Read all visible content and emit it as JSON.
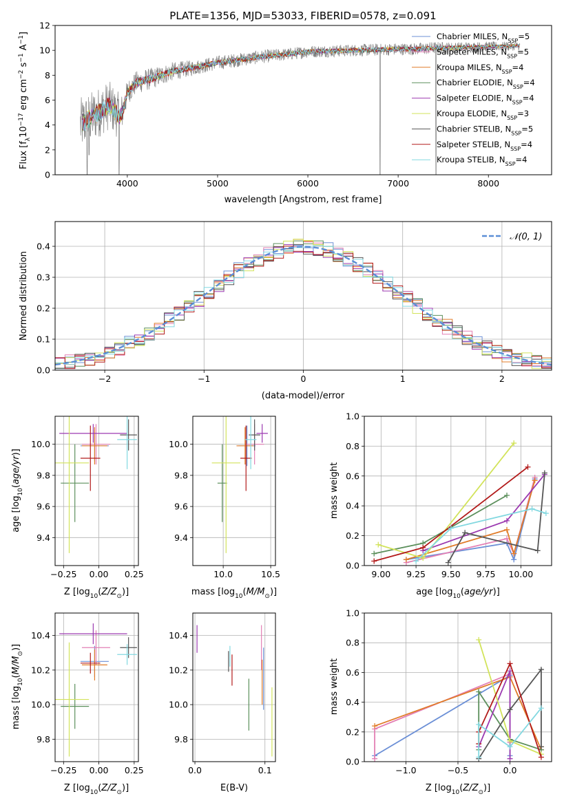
{
  "figure_title": "PLATE=1356, MJD=53033, FIBERID=0578, z=0.091",
  "colors": {
    "Chabrier MILES": "#6b8fd6",
    "Salpeter MILES": "#e37fb4",
    "Kroupa MILES": "#e07b28",
    "Chabrier ELODIE": "#5b8f5b",
    "Salpeter ELODIE": "#9b39b0",
    "Kroupa ELODIE": "#d2e35a",
    "Chabrier STELIB": "#555555",
    "Salpeter STELIB": "#b21a1a",
    "Kroupa STELIB": "#82d8e0",
    "normal_curve": "#5b8ed6",
    "data": "#808080"
  },
  "chart_data": [
    {
      "id": "spectrum",
      "type": "line",
      "title": "PLATE=1356, MJD=53033, FIBERID=0578, z=0.091",
      "xlabel": "wavelength [Angstrom, rest frame]",
      "ylabel": "Flux [fλ10⁻¹⁷ erg cm⁻² s⁻¹ A⁻¹]",
      "xlim": [
        3200,
        8700
      ],
      "ylim": [
        0,
        12
      ],
      "xticks": [
        4000,
        5000,
        6000,
        7000,
        8000
      ],
      "yticks": [
        0,
        2,
        4,
        6,
        8,
        10,
        12
      ],
      "grid": false,
      "legend_position": "top-right",
      "legend": [
        {
          "label": "Chabrier MILES, N",
          "sub": "SSP",
          "tail": "=5",
          "color_key": "Chabrier MILES"
        },
        {
          "label": "Salpeter MILES, N",
          "sub": "SSP",
          "tail": "=5",
          "color_key": "Salpeter MILES"
        },
        {
          "label": "Kroupa MILES, N",
          "sub": "SSP",
          "tail": "=4",
          "color_key": "Kroupa MILES"
        },
        {
          "label": "Chabrier ELODIE, N",
          "sub": "SSP",
          "tail": "=4",
          "color_key": "Chabrier ELODIE"
        },
        {
          "label": "Salpeter ELODIE, N",
          "sub": "SSP",
          "tail": "=4",
          "color_key": "Salpeter ELODIE"
        },
        {
          "label": "Kroupa ELODIE, N",
          "sub": "SSP",
          "tail": "=3",
          "color_key": "Kroupa ELODIE"
        },
        {
          "label": "Chabrier STELIB, N",
          "sub": "SSP",
          "tail": "=5",
          "color_key": "Chabrier STELIB"
        },
        {
          "label": "Salpeter STELIB, N",
          "sub": "SSP",
          "tail": "=4",
          "color_key": "Salpeter STELIB"
        },
        {
          "label": "Kroupa STELIB, N",
          "sub": "SSP",
          "tail": "=4",
          "color_key": "Kroupa STELIB"
        }
      ],
      "data_range": [
        3480,
        8350
      ],
      "continuum_anchors": [
        [
          3480,
          4.0
        ],
        [
          3600,
          4.6
        ],
        [
          3800,
          5.6
        ],
        [
          3920,
          4.6
        ],
        [
          3960,
          5.4
        ],
        [
          4000,
          6.6
        ],
        [
          4100,
          7.4
        ],
        [
          4300,
          7.8
        ],
        [
          4500,
          8.3
        ],
        [
          4800,
          8.7
        ],
        [
          5000,
          9.0
        ],
        [
          5200,
          9.2
        ],
        [
          5500,
          9.5
        ],
        [
          5800,
          9.7
        ],
        [
          6000,
          9.9
        ],
        [
          6300,
          9.95
        ],
        [
          6500,
          10.0
        ],
        [
          6800,
          10.05
        ],
        [
          7000,
          10.1
        ],
        [
          7200,
          10.1
        ],
        [
          7400,
          10.2
        ],
        [
          7600,
          10.2
        ],
        [
          7800,
          10.25
        ],
        [
          8000,
          10.3
        ],
        [
          8350,
          10.35
        ]
      ],
      "noise_anchors": [
        [
          3480,
          2.2
        ],
        [
          3900,
          1.9
        ],
        [
          4000,
          1.0
        ],
        [
          4800,
          0.6
        ],
        [
          6000,
          0.5
        ],
        [
          7400,
          0.5
        ],
        [
          8350,
          0.35
        ]
      ],
      "spikes": [
        [
          3555,
          0.0
        ],
        [
          3575,
          1.6
        ],
        [
          3910,
          0.0
        ],
        [
          6800,
          0.0
        ],
        [
          7420,
          0.0
        ]
      ]
    },
    {
      "id": "residual_hist",
      "type": "step",
      "xlabel": "(data-model)/error",
      "ylabel": "Normed distribution",
      "xlim": [
        -2.5,
        2.5
      ],
      "ylim": [
        0,
        0.48
      ],
      "xticks": [
        -2,
        -1,
        0,
        1,
        2
      ],
      "yticks": [
        0.0,
        0.1,
        0.2,
        0.3,
        0.4
      ],
      "grid": true,
      "legend_position": "top-right",
      "legend": [
        {
          "label": "𝒩(0, 1)",
          "color_key": "normal_curve",
          "style": "dashed"
        }
      ],
      "bin_width": 0.1
    },
    {
      "id": "age_vs_Z",
      "type": "errorbar",
      "xlabel": "Z [log10(Z/Z⊙)]",
      "ylabel": "age  [log10(age/yr)]",
      "xlim": [
        -0.31,
        0.28
      ],
      "ylim": [
        9.22,
        10.18
      ],
      "xticks": [
        -0.25,
        0.0,
        0.25
      ],
      "yticks": [
        9.4,
        9.6,
        9.8,
        10.0
      ],
      "grid": true,
      "points": [
        {
          "key": "Chabrier MILES",
          "x": -0.03,
          "xerr": 0.1,
          "y": 9.99,
          "yerr": 0.1
        },
        {
          "key": "Salpeter MILES",
          "x": -0.02,
          "xerr": 0.1,
          "y": 10.0,
          "yerr": 0.13
        },
        {
          "key": "Kroupa MILES",
          "x": -0.03,
          "xerr": 0.09,
          "y": 9.99,
          "yerr": 0.12
        },
        {
          "key": "Chabrier ELODIE",
          "x": -0.17,
          "xerr": 0.1,
          "y": 9.75,
          "yerr": 0.25
        },
        {
          "key": "Salpeter ELODIE",
          "x": -0.04,
          "xerr": 0.24,
          "y": 10.07,
          "yerr": 0.06
        },
        {
          "key": "Kroupa ELODIE",
          "x": -0.21,
          "xerr": 0.14,
          "y": 9.88,
          "yerr": 0.58
        },
        {
          "key": "Chabrier STELIB",
          "x": 0.21,
          "xerr": 0.06,
          "y": 10.06,
          "yerr": 0.1
        },
        {
          "key": "Salpeter STELIB",
          "x": -0.06,
          "xerr": 0.07,
          "y": 9.91,
          "yerr": 0.21
        },
        {
          "key": "Kroupa STELIB",
          "x": 0.2,
          "xerr": 0.07,
          "y": 10.03,
          "yerr": 0.19
        }
      ]
    },
    {
      "id": "age_vs_mass",
      "type": "errorbar",
      "xlabel": "mass [log10(M/M⊙)]",
      "ylabel": "",
      "xlim": [
        9.68,
        10.55
      ],
      "ylim": [
        9.22,
        10.18
      ],
      "xticks": [
        10.0,
        10.5
      ],
      "yticks": [
        9.4,
        9.6,
        9.8,
        10.0
      ],
      "grid": true,
      "points": [
        {
          "key": "Chabrier MILES",
          "x": 10.25,
          "xerr": 0.09,
          "y": 9.99,
          "yerr": 0.13
        },
        {
          "key": "Salpeter MILES",
          "x": 10.33,
          "xerr": 0.1,
          "y": 10.0,
          "yerr": 0.13
        },
        {
          "key": "Kroupa MILES",
          "x": 10.23,
          "xerr": 0.09,
          "y": 9.99,
          "yerr": 0.12
        },
        {
          "key": "Chabrier ELODIE",
          "x": 9.99,
          "xerr": 0.05,
          "y": 9.75,
          "yerr": 0.25
        },
        {
          "key": "Salpeter ELODIE",
          "x": 10.41,
          "xerr": 0.06,
          "y": 10.07,
          "yerr": 0.06
        },
        {
          "key": "Kroupa ELODIE",
          "x": 10.03,
          "xerr": 0.15,
          "y": 9.88,
          "yerr": 0.58
        },
        {
          "key": "Chabrier STELIB",
          "x": 10.33,
          "xerr": 0.06,
          "y": 10.06,
          "yerr": 0.1
        },
        {
          "key": "Salpeter STELIB",
          "x": 10.24,
          "xerr": 0.06,
          "y": 9.91,
          "yerr": 0.21
        },
        {
          "key": "Kroupa STELIB",
          "x": 10.29,
          "xerr": 0.06,
          "y": 10.03,
          "yerr": 0.19
        }
      ]
    },
    {
      "id": "mass_weight_vs_age",
      "type": "line",
      "xlabel": "age  [log10(age/yr)]",
      "ylabel": "mass weight",
      "xlim": [
        8.88,
        10.22
      ],
      "ylim": [
        0,
        1.0
      ],
      "xticks": [
        9.0,
        9.25,
        9.5,
        9.75,
        10.0
      ],
      "yticks": [
        0.0,
        0.2,
        0.4,
        0.6,
        0.8,
        1.0
      ],
      "grid": true,
      "series": [
        {
          "key": "Chabrier MILES",
          "x": [
            9.18,
            9.9,
            9.95,
            10.1
          ],
          "y": [
            0.04,
            0.15,
            0.04,
            0.58
          ]
        },
        {
          "key": "Salpeter MILES",
          "x": [
            9.18,
            9.9,
            9.95,
            10.1
          ],
          "y": [
            0.02,
            0.18,
            0.08,
            0.59
          ]
        },
        {
          "key": "Kroupa MILES",
          "x": [
            9.18,
            9.9,
            9.95,
            10.1
          ],
          "y": [
            0.04,
            0.24,
            0.08,
            0.57
          ]
        },
        {
          "key": "Chabrier ELODIE",
          "x": [
            8.95,
            9.3,
            9.9
          ],
          "y": [
            0.08,
            0.15,
            0.47
          ]
        },
        {
          "key": "Salpeter ELODIE",
          "x": [
            9.3,
            9.9,
            10.17
          ],
          "y": [
            0.1,
            0.3,
            0.61
          ]
        },
        {
          "key": "Kroupa ELODIE",
          "x": [
            8.98,
            9.3,
            9.95
          ],
          "y": [
            0.14,
            0.05,
            0.82
          ]
        },
        {
          "key": "Chabrier STELIB",
          "x": [
            9.48,
            9.6,
            10.12,
            10.17
          ],
          "y": [
            0.02,
            0.22,
            0.1,
            0.62
          ]
        },
        {
          "key": "Salpeter STELIB",
          "x": [
            8.95,
            9.3,
            10.05
          ],
          "y": [
            0.03,
            0.12,
            0.66
          ]
        },
        {
          "key": "Kroupa STELIB",
          "x": [
            9.25,
            9.5,
            10.08,
            10.18
          ],
          "y": [
            0.03,
            0.25,
            0.38,
            0.35
          ]
        }
      ]
    },
    {
      "id": "mass_vs_Z",
      "type": "errorbar",
      "xlabel": "Z [log10(Z/Z⊙)]",
      "ylabel": "mass [log10(M/M⊙)]",
      "xlim": [
        -0.31,
        0.28
      ],
      "ylim": [
        9.67,
        10.53
      ],
      "xticks": [
        -0.25,
        0.0,
        0.25
      ],
      "yticks": [
        9.8,
        10.0,
        10.2,
        10.4
      ],
      "grid": true,
      "points": [
        {
          "key": "Chabrier MILES",
          "x": -0.03,
          "xerr": 0.1,
          "y": 10.25,
          "yerr": 0.09
        },
        {
          "key": "Salpeter MILES",
          "x": -0.02,
          "xerr": 0.1,
          "y": 10.33,
          "yerr": 0.1
        },
        {
          "key": "Kroupa MILES",
          "x": -0.03,
          "xerr": 0.09,
          "y": 10.23,
          "yerr": 0.09
        },
        {
          "key": "Chabrier ELODIE",
          "x": -0.17,
          "xerr": 0.1,
          "y": 9.99,
          "yerr": 0.13
        },
        {
          "key": "Salpeter ELODIE",
          "x": -0.04,
          "xerr": 0.24,
          "y": 10.41,
          "yerr": 0.06
        },
        {
          "key": "Kroupa ELODIE",
          "x": -0.21,
          "xerr": 0.14,
          "y": 10.03,
          "yerr": 0.33
        },
        {
          "key": "Chabrier STELIB",
          "x": 0.21,
          "xerr": 0.06,
          "y": 10.33,
          "yerr": 0.06
        },
        {
          "key": "Salpeter STELIB",
          "x": -0.06,
          "xerr": 0.07,
          "y": 10.24,
          "yerr": 0.06
        },
        {
          "key": "Kroupa STELIB",
          "x": 0.2,
          "xerr": 0.07,
          "y": 10.29,
          "yerr": 0.06
        }
      ]
    },
    {
      "id": "mass_vs_ebv",
      "type": "errorbar",
      "xlabel": "E(B-V)",
      "ylabel": "",
      "xlim": [
        -0.003,
        0.115
      ],
      "ylim": [
        9.67,
        10.53
      ],
      "xticks": [
        0.0,
        0.1
      ],
      "yticks": [
        9.8,
        10.0,
        10.2,
        10.4
      ],
      "grid": true,
      "points": [
        {
          "key": "Chabrier MILES",
          "x": 0.098,
          "xerr": 0.0,
          "y": 10.15,
          "yerr": 0.18
        },
        {
          "key": "Salpeter MILES",
          "x": 0.095,
          "xerr": 0.0,
          "y": 10.33,
          "yerr": 0.13
        },
        {
          "key": "Kroupa MILES",
          "x": 0.096,
          "xerr": 0.0,
          "y": 10.13,
          "yerr": 0.13
        },
        {
          "key": "Chabrier ELODIE",
          "x": 0.077,
          "xerr": 0.0,
          "y": 10.0,
          "yerr": 0.15
        },
        {
          "key": "Salpeter ELODIE",
          "x": 0.003,
          "xerr": 0.0,
          "y": 10.38,
          "yerr": 0.08
        },
        {
          "key": "Kroupa ELODIE",
          "x": 0.11,
          "xerr": 0.0,
          "y": 9.9,
          "yerr": 0.2
        },
        {
          "key": "Chabrier STELIB",
          "x": 0.048,
          "xerr": 0.0,
          "y": 10.25,
          "yerr": 0.06
        },
        {
          "key": "Salpeter STELIB",
          "x": 0.053,
          "xerr": 0.0,
          "y": 10.2,
          "yerr": 0.09
        },
        {
          "key": "Kroupa STELIB",
          "x": 0.05,
          "xerr": 0.0,
          "y": 10.28,
          "yerr": 0.06
        }
      ]
    },
    {
      "id": "mass_weight_vs_Z",
      "type": "line",
      "xlabel": "Z [log10(Z/Z⊙)]",
      "ylabel": "mass weight",
      "xlim": [
        -1.4,
        0.4
      ],
      "ylim": [
        0,
        1.0
      ],
      "xticks": [
        -1.0,
        -0.5,
        0.0
      ],
      "yticks": [
        0.0,
        0.2,
        0.4,
        0.6,
        0.8,
        1.0
      ],
      "grid": true,
      "series": [
        {
          "key": "Chabrier MILES",
          "x": [
            -1.3,
            0.0,
            0.0,
            0.0
          ],
          "y": [
            0.04,
            0.58,
            0.15,
            0.04
          ]
        },
        {
          "key": "Salpeter MILES",
          "x": [
            -1.3,
            -1.3,
            0.0,
            0.0
          ],
          "y": [
            0.02,
            0.22,
            0.59,
            0.13
          ]
        },
        {
          "key": "Kroupa MILES",
          "x": [
            -1.3,
            0.0,
            0.3,
            0.3
          ],
          "y": [
            0.24,
            0.57,
            0.08,
            0.1
          ]
        },
        {
          "key": "Chabrier ELODIE",
          "x": [
            -0.3,
            -0.3,
            0.0,
            0.3
          ],
          "y": [
            0.08,
            0.47,
            0.15,
            0.08
          ]
        },
        {
          "key": "Salpeter ELODIE",
          "x": [
            -0.3,
            0.0,
            0.0
          ],
          "y": [
            0.1,
            0.61,
            0.02
          ]
        },
        {
          "key": "Kroupa ELODIE",
          "x": [
            -0.3,
            0.0,
            0.3
          ],
          "y": [
            0.82,
            0.14,
            0.05
          ]
        },
        {
          "key": "Chabrier STELIB",
          "x": [
            -0.3,
            0.0,
            0.3,
            0.3
          ],
          "y": [
            0.02,
            0.35,
            0.62,
            0.1
          ]
        },
        {
          "key": "Salpeter STELIB",
          "x": [
            -0.3,
            -0.3,
            0.0,
            0.3
          ],
          "y": [
            0.12,
            0.2,
            0.66,
            0.03
          ]
        },
        {
          "key": "Kroupa STELIB",
          "x": [
            -0.3,
            -0.3,
            0.0,
            0.3
          ],
          "y": [
            0.03,
            0.25,
            0.1,
            0.36
          ]
        }
      ]
    }
  ]
}
